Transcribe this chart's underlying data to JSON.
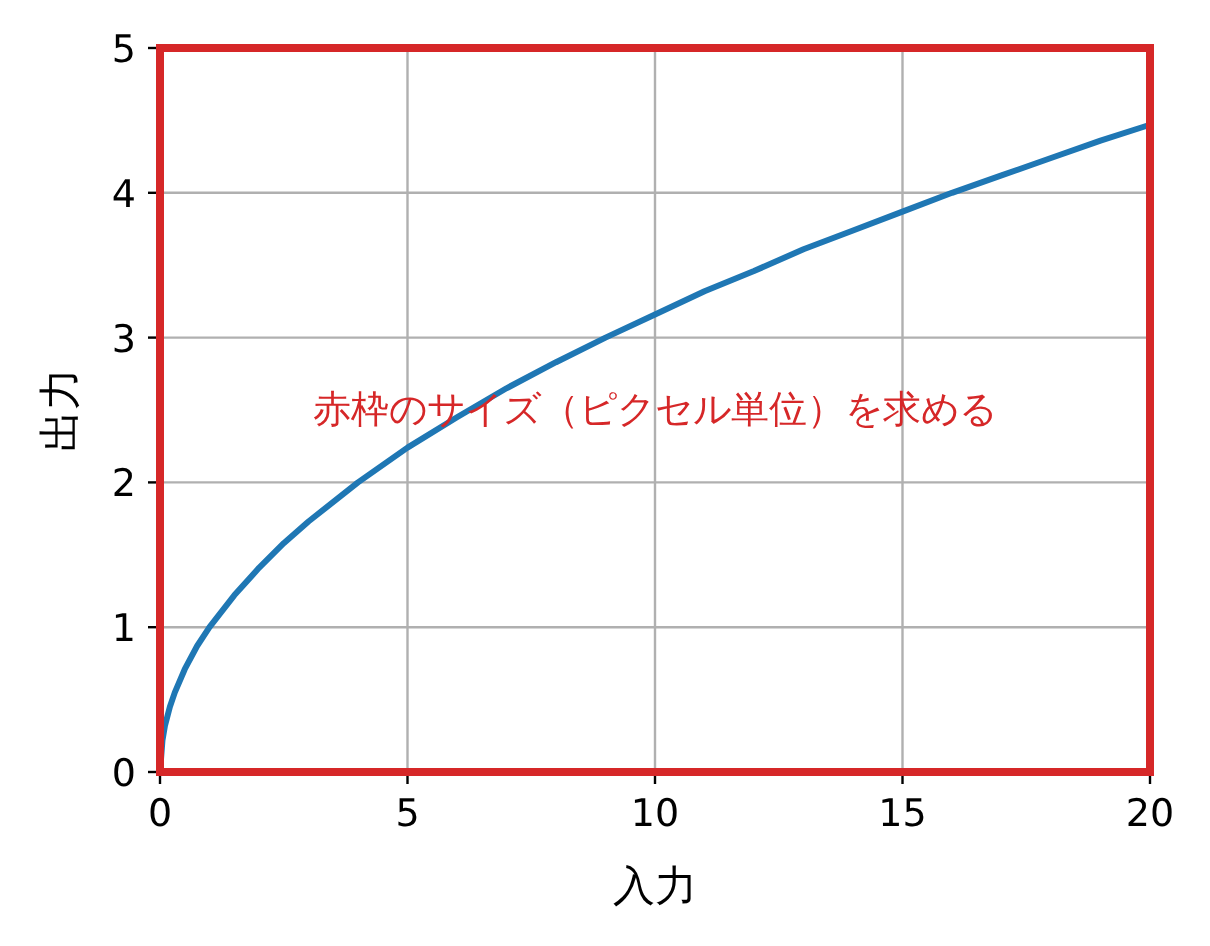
{
  "chart_data": {
    "type": "line",
    "xlabel": "入力",
    "ylabel": "出力",
    "annotations": [
      "赤枠のサイズ（ピクセル単位）を求める"
    ],
    "x": [
      0,
      0.05,
      0.1,
      0.2,
      0.3,
      0.5,
      0.75,
      1,
      1.5,
      2,
      2.5,
      3,
      4,
      5,
      6,
      7,
      8,
      9,
      10,
      11,
      12,
      13,
      14,
      15,
      16,
      17,
      18,
      19,
      20
    ],
    "series": [
      {
        "color": "#1f77b4",
        "values": [
          0,
          0.22,
          0.32,
          0.45,
          0.55,
          0.71,
          0.87,
          1,
          1.22,
          1.41,
          1.58,
          1.73,
          2,
          2.24,
          2.45,
          2.65,
          2.83,
          3,
          3.16,
          3.32,
          3.46,
          3.61,
          3.74,
          3.87,
          4,
          4.12,
          4.24,
          4.36,
          4.47
        ]
      }
    ],
    "xlim": [
      0,
      20
    ],
    "ylim": [
      0,
      5
    ],
    "xticks": [
      0,
      5,
      10,
      15,
      20
    ],
    "yticks": [
      0,
      1,
      2,
      3,
      4,
      5
    ],
    "grid": true
  }
}
